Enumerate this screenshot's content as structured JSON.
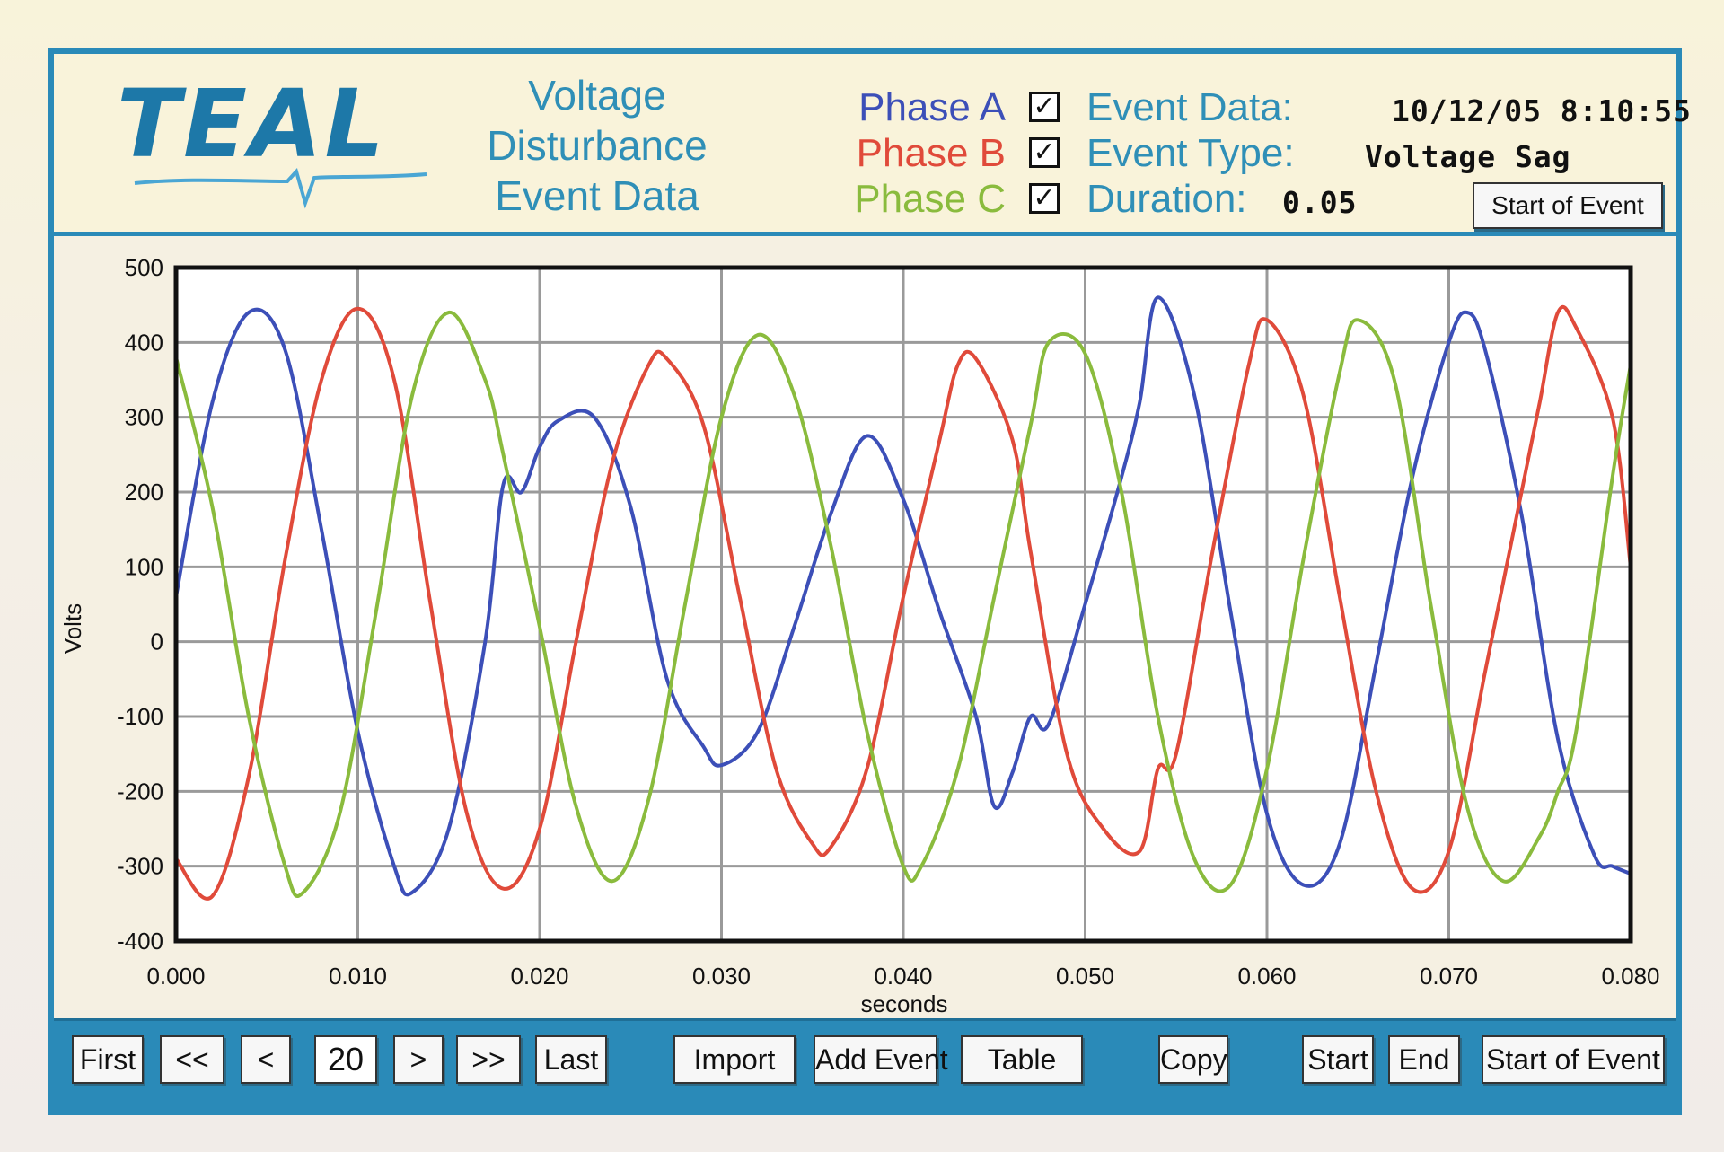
{
  "header": {
    "logo": "TEAL",
    "title_lines": [
      "Voltage",
      "Disturbance",
      "Event Data"
    ],
    "phases": [
      {
        "label": "Phase A",
        "color": "#3c4fb8",
        "checked": true
      },
      {
        "label": "Phase B",
        "color": "#e04a3a",
        "checked": true
      },
      {
        "label": "Phase C",
        "color": "#8abb3d",
        "checked": true
      }
    ],
    "check_glyph": "✓",
    "event": {
      "data_label": "Event Data:",
      "data_value": "10/12/05 8:10:55",
      "type_label": "Event Type:",
      "type_value": "Voltage Sag",
      "duration_label": "Duration:",
      "duration_value": "0.05"
    },
    "start_of_event_button": "Start of Event"
  },
  "chart_data": {
    "type": "line",
    "xlabel": "seconds",
    "ylabel": "Volts",
    "xlim": [
      0.0,
      0.08
    ],
    "ylim": [
      -400,
      500
    ],
    "xticks": [
      "0.000",
      "0.010",
      "0.020",
      "0.030",
      "0.040",
      "0.050",
      "0.060",
      "0.070",
      "0.080"
    ],
    "yticks": [
      "500",
      "400",
      "300",
      "200",
      "100",
      "0",
      "-100",
      "-200",
      "-300",
      "-400"
    ],
    "grid": true,
    "series": [
      {
        "name": "Phase A",
        "color": "#3c4fb8",
        "points": [
          [
            0.0,
            60
          ],
          [
            0.002,
            320
          ],
          [
            0.004,
            440
          ],
          [
            0.006,
            390
          ],
          [
            0.008,
            150
          ],
          [
            0.01,
            -120
          ],
          [
            0.012,
            -300
          ],
          [
            0.013,
            -335
          ],
          [
            0.015,
            -250
          ],
          [
            0.017,
            0
          ],
          [
            0.018,
            210
          ],
          [
            0.019,
            200
          ],
          [
            0.02,
            260
          ],
          [
            0.021,
            295
          ],
          [
            0.023,
            300
          ],
          [
            0.025,
            180
          ],
          [
            0.027,
            -50
          ],
          [
            0.029,
            -140
          ],
          [
            0.03,
            -165
          ],
          [
            0.032,
            -120
          ],
          [
            0.034,
            20
          ],
          [
            0.036,
            170
          ],
          [
            0.038,
            275
          ],
          [
            0.04,
            190
          ],
          [
            0.042,
            40
          ],
          [
            0.044,
            -100
          ],
          [
            0.045,
            -220
          ],
          [
            0.046,
            -175
          ],
          [
            0.047,
            -100
          ],
          [
            0.048,
            -110
          ],
          [
            0.05,
            50
          ],
          [
            0.052,
            220
          ],
          [
            0.053,
            320
          ],
          [
            0.054,
            460
          ],
          [
            0.056,
            330
          ],
          [
            0.058,
            40
          ],
          [
            0.06,
            -230
          ],
          [
            0.062,
            -325
          ],
          [
            0.064,
            -270
          ],
          [
            0.066,
            -30
          ],
          [
            0.068,
            220
          ],
          [
            0.07,
            400
          ],
          [
            0.071,
            440
          ],
          [
            0.072,
            390
          ],
          [
            0.074,
            170
          ],
          [
            0.076,
            -130
          ],
          [
            0.078,
            -285
          ],
          [
            0.079,
            -300
          ],
          [
            0.08,
            -310
          ]
        ]
      },
      {
        "name": "Phase B",
        "color": "#e04a3a",
        "points": [
          [
            0.0,
            -290
          ],
          [
            0.002,
            -340
          ],
          [
            0.004,
            -180
          ],
          [
            0.006,
            110
          ],
          [
            0.008,
            350
          ],
          [
            0.01,
            445
          ],
          [
            0.012,
            350
          ],
          [
            0.014,
            50
          ],
          [
            0.016,
            -230
          ],
          [
            0.018,
            -330
          ],
          [
            0.02,
            -250
          ],
          [
            0.022,
            0
          ],
          [
            0.024,
            240
          ],
          [
            0.026,
            370
          ],
          [
            0.027,
            378
          ],
          [
            0.029,
            290
          ],
          [
            0.031,
            60
          ],
          [
            0.033,
            -170
          ],
          [
            0.035,
            -270
          ],
          [
            0.036,
            -275
          ],
          [
            0.038,
            -170
          ],
          [
            0.04,
            60
          ],
          [
            0.042,
            270
          ],
          [
            0.043,
            370
          ],
          [
            0.044,
            378
          ],
          [
            0.046,
            270
          ],
          [
            0.047,
            120
          ],
          [
            0.049,
            -150
          ],
          [
            0.051,
            -250
          ],
          [
            0.053,
            -280
          ],
          [
            0.054,
            -170
          ],
          [
            0.055,
            -150
          ],
          [
            0.057,
            120
          ],
          [
            0.059,
            370
          ],
          [
            0.06,
            430
          ],
          [
            0.062,
            330
          ],
          [
            0.064,
            60
          ],
          [
            0.066,
            -200
          ],
          [
            0.068,
            -330
          ],
          [
            0.07,
            -280
          ],
          [
            0.072,
            -40
          ],
          [
            0.074,
            200
          ],
          [
            0.075,
            320
          ],
          [
            0.076,
            440
          ],
          [
            0.077,
            420
          ],
          [
            0.079,
            300
          ],
          [
            0.08,
            100
          ]
        ]
      },
      {
        "name": "Phase C",
        "color": "#8abb3d",
        "points": [
          [
            0.0,
            380
          ],
          [
            0.002,
            180
          ],
          [
            0.004,
            -100
          ],
          [
            0.006,
            -300
          ],
          [
            0.007,
            -335
          ],
          [
            0.009,
            -230
          ],
          [
            0.011,
            40
          ],
          [
            0.013,
            330
          ],
          [
            0.015,
            440
          ],
          [
            0.017,
            350
          ],
          [
            0.018,
            250
          ],
          [
            0.02,
            20
          ],
          [
            0.022,
            -220
          ],
          [
            0.024,
            -320
          ],
          [
            0.026,
            -210
          ],
          [
            0.028,
            50
          ],
          [
            0.03,
            300
          ],
          [
            0.032,
            410
          ],
          [
            0.034,
            330
          ],
          [
            0.036,
            130
          ],
          [
            0.038,
            -120
          ],
          [
            0.04,
            -300
          ],
          [
            0.041,
            -300
          ],
          [
            0.043,
            -170
          ],
          [
            0.045,
            60
          ],
          [
            0.047,
            290
          ],
          [
            0.048,
            400
          ],
          [
            0.05,
            385
          ],
          [
            0.052,
            200
          ],
          [
            0.054,
            -100
          ],
          [
            0.056,
            -290
          ],
          [
            0.058,
            -325
          ],
          [
            0.06,
            -170
          ],
          [
            0.062,
            110
          ],
          [
            0.064,
            360
          ],
          [
            0.065,
            430
          ],
          [
            0.067,
            350
          ],
          [
            0.069,
            50
          ],
          [
            0.071,
            -220
          ],
          [
            0.073,
            -320
          ],
          [
            0.075,
            -260
          ],
          [
            0.076,
            -200
          ],
          [
            0.077,
            -120
          ],
          [
            0.079,
            220
          ],
          [
            0.08,
            370
          ]
        ]
      }
    ]
  },
  "footer": {
    "first": "First",
    "prev_page": "<<",
    "prev": "<",
    "page_value": "20",
    "next": ">",
    "next_page": ">>",
    "last": "Last",
    "import": "Import",
    "add_event": "Add Event",
    "table": "Table",
    "copy": "Copy",
    "start": "Start",
    "end": "End",
    "start_of_event": "Start of Event"
  }
}
